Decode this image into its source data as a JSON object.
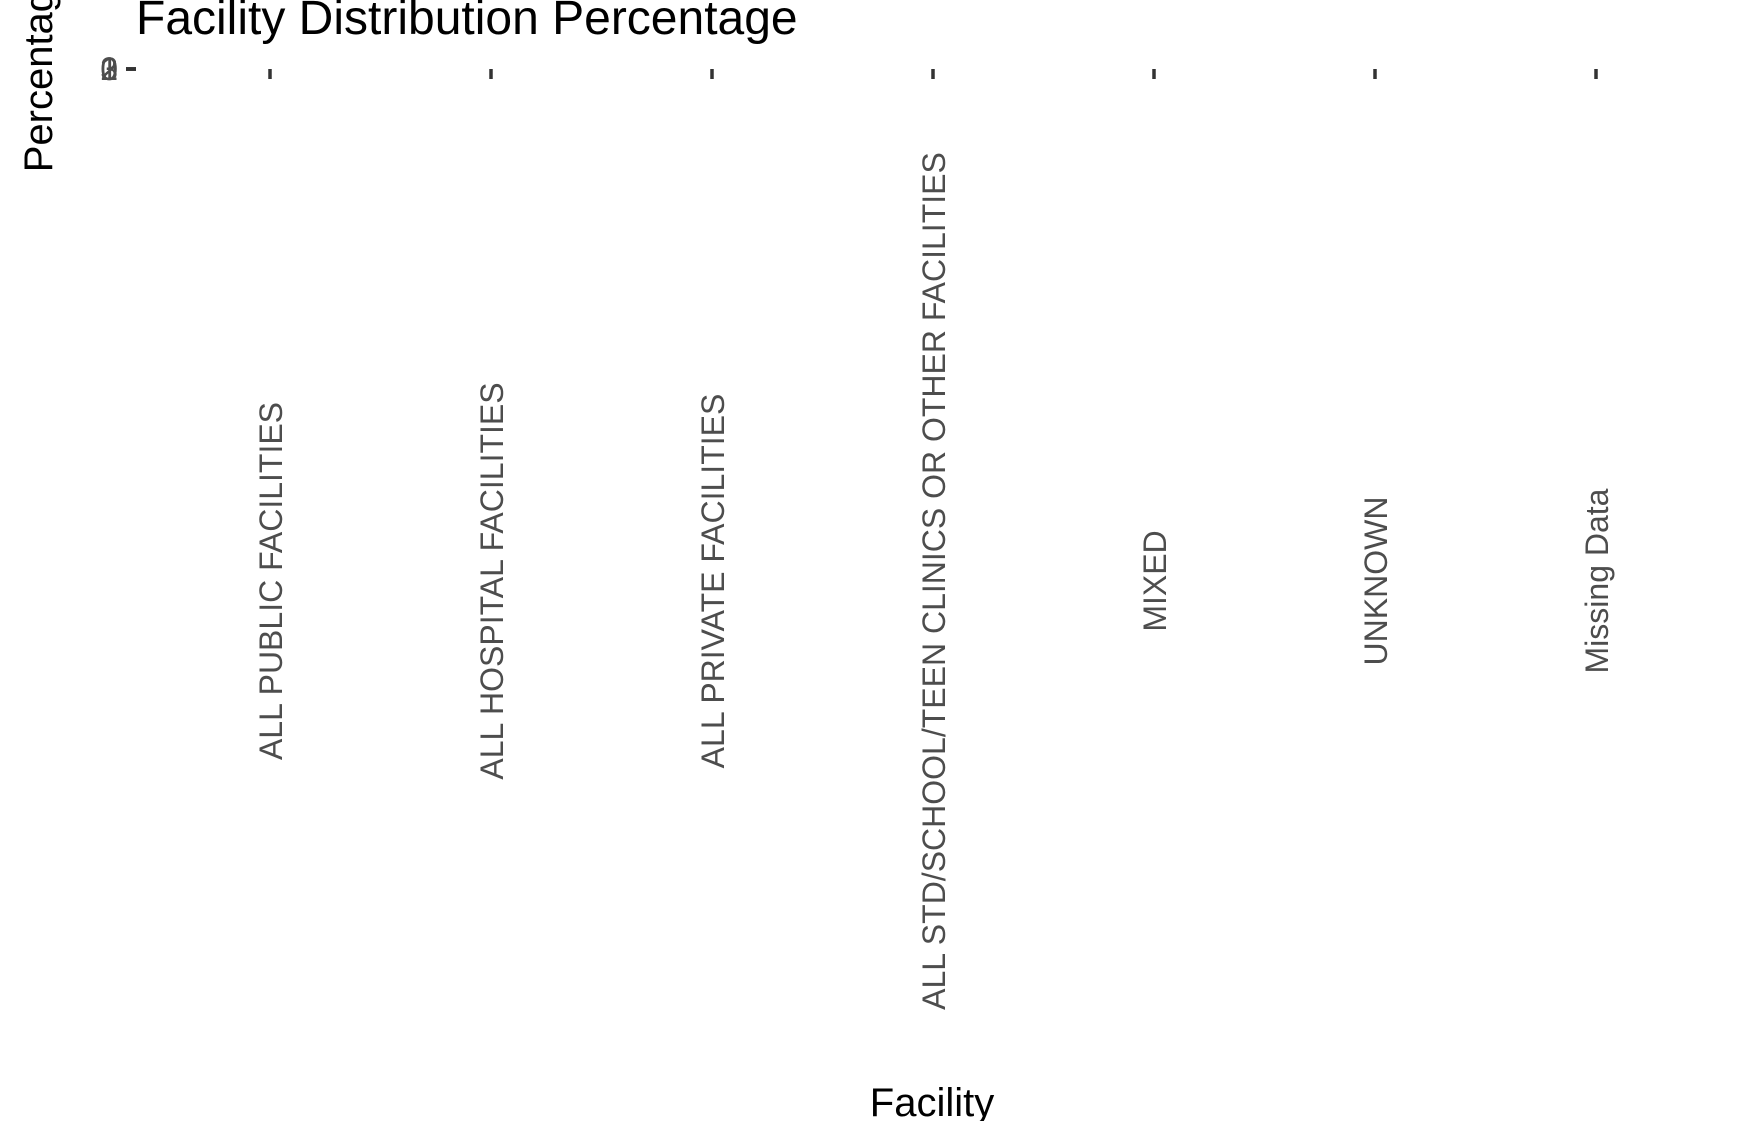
{
  "chart_data": {
    "type": "bar",
    "title": "Facility Distribution Percentage",
    "xlabel": "Facility",
    "ylabel": "Percentage",
    "categories": [
      "ALL PUBLIC FACILITIES",
      "ALL HOSPITAL FACILITIES",
      "ALL PRIVATE FACILITIES",
      "ALL STD/SCHOOL/TEEN CLINICS OR OTHER FACILITIES",
      "MIXED",
      "UNKNOWN",
      "Missing Data"
    ],
    "values": [
      0,
      0,
      0,
      0,
      0,
      0,
      0
    ],
    "yticks": [
      "0",
      "1",
      "2",
      "3"
    ],
    "grid": false,
    "legend": "none"
  }
}
